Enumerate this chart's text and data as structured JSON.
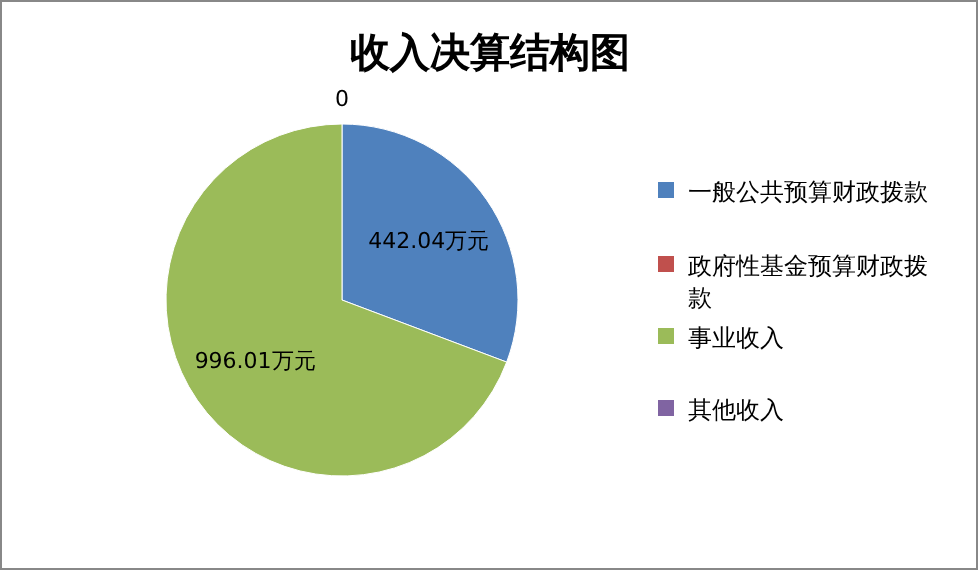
{
  "chart_data": {
    "type": "pie",
    "title": "收入决算结构图",
    "categories": [
      "一般公共预算财政拨款",
      "政府性基金预算财政拨款",
      "事业收入",
      "其他收入"
    ],
    "values": [
      442.04,
      0,
      996.01,
      0
    ],
    "colors": [
      "#4f81bd",
      "#c0504d",
      "#9bbb59",
      "#8064a2"
    ],
    "value_labels": [
      "442.04万元",
      null,
      "996.01万元",
      "0"
    ],
    "legend": "right"
  }
}
